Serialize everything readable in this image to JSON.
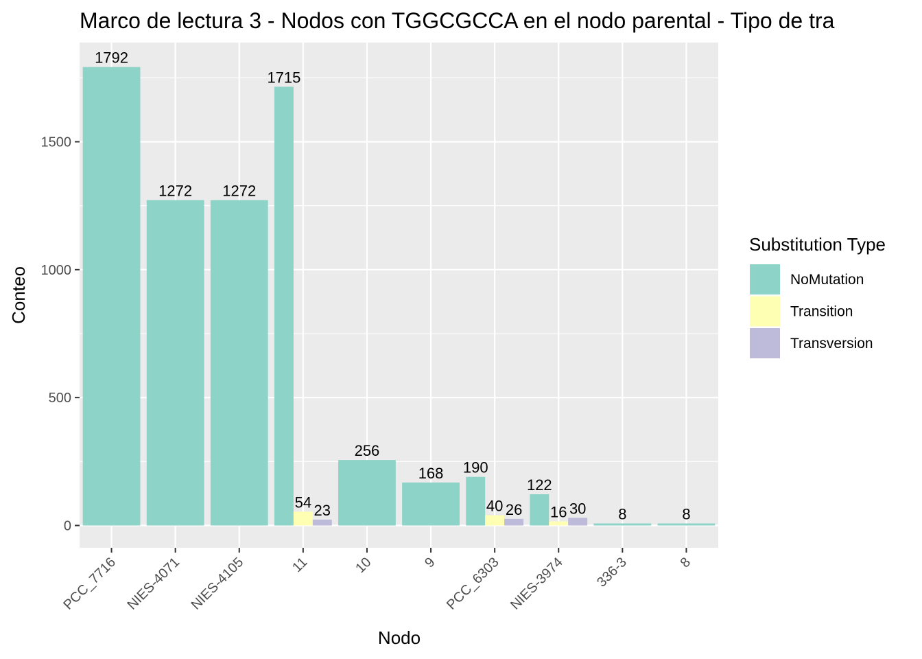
{
  "chart_data": {
    "type": "bar",
    "title": "Marco de lectura 3 - Nodos con TGGCGCCA en el nodo parental - Tipo de tra",
    "xlabel": "Nodo",
    "ylabel": "Conteo",
    "ylim": [
      -70,
      1830
    ],
    "yticks": [
      0,
      500,
      1000,
      1500
    ],
    "grid": true,
    "legend": {
      "title": "Substitution Type",
      "position": "right"
    },
    "categories": [
      "PCC_7716",
      "NIES-4071",
      "NIES-4105",
      "11",
      "10",
      "9",
      "PCC_6303",
      "NIES-3974",
      "336-3",
      "8"
    ],
    "series": [
      {
        "name": "NoMutation",
        "color": "#8dd3c7",
        "values": [
          1792,
          1272,
          1272,
          1715,
          256,
          168,
          190,
          122,
          8,
          8
        ]
      },
      {
        "name": "Transition",
        "color": "#ffffb3",
        "values": [
          null,
          null,
          null,
          54,
          null,
          null,
          40,
          16,
          null,
          null
        ]
      },
      {
        "name": "Transversion",
        "color": "#bebada",
        "values": [
          null,
          null,
          null,
          23,
          null,
          null,
          26,
          30,
          null,
          null
        ]
      }
    ]
  }
}
